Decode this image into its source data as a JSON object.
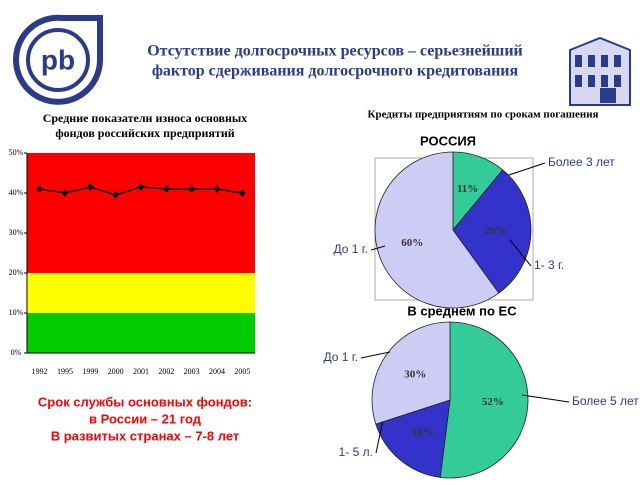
{
  "header": {
    "title": [
      "Отсутствие долгосрочных ресурсов – серьезнейший",
      "фактор сдерживания долгосрочного кредитования"
    ]
  },
  "right_heading": "Кредиты предприятиям по срокам погашения",
  "footer": [
    "Срок службы основных фондов:",
    "в России – 21 год",
    "В развитых странах – 7-8 лет"
  ],
  "chart_data": [
    {
      "type": "line",
      "title": [
        "Средние показатели износа основных",
        "фондов российских предприятий"
      ],
      "categories": [
        "1992",
        "1995",
        "1999",
        "2000",
        "2001",
        "2002",
        "2003",
        "2004",
        "2005"
      ],
      "values": [
        41,
        40,
        41.5,
        39.5,
        41.5,
        41,
        41,
        41,
        40
      ],
      "color": "#000000",
      "ylim": [
        0,
        50
      ],
      "yticks": [
        {
          "value": 0,
          "label": "0%"
        },
        {
          "value": 10,
          "label": "10%"
        },
        {
          "value": 20,
          "label": "20%"
        },
        {
          "value": 30,
          "label": "30%"
        },
        {
          "value": 40,
          "label": "40%"
        },
        {
          "value": 50,
          "label": "50%"
        }
      ],
      "zones": [
        {
          "from": 0,
          "to": 10,
          "color": "#00cc00"
        },
        {
          "from": 10,
          "to": 20,
          "color": "#ffff00"
        },
        {
          "from": 20,
          "to": 50,
          "color": "#ff0000"
        }
      ]
    },
    {
      "type": "pie",
      "title": "РОССИЯ",
      "categories": [
        "Более 3 лет",
        "1- 3 г.",
        "До 1 г."
      ],
      "values": [
        11,
        29,
        60
      ],
      "value_labels": [
        "11%",
        "29%",
        "60%"
      ],
      "colors": [
        "#33cc99",
        "#3333cc",
        "#ccccf5"
      ]
    },
    {
      "type": "pie",
      "title": "В среднем по ЕС",
      "categories": [
        "Более 5 лет",
        "1- 5 л.",
        "До 1 г."
      ],
      "values": [
        52,
        18,
        30
      ],
      "value_labels": [
        "52%",
        "18%",
        "30%"
      ],
      "colors": [
        "#33cc99",
        "#3333cc",
        "#ccccf5"
      ]
    }
  ]
}
